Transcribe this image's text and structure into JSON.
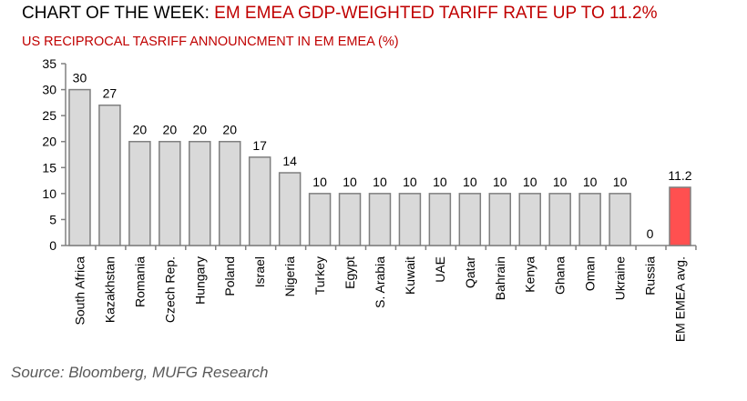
{
  "chart_data": {
    "type": "bar",
    "title_prefix": "CHART OF THE WEEK: ",
    "title": "EM EMEA GDP-WEIGHTED TARIFF RATE UP TO 11.2%",
    "subtitle": "US RECIPROCAL TASRIFF ANNOUNCMENT IN EM EMEA (%)",
    "categories": [
      "South Africa",
      "Kazakhstan",
      "Romania",
      "Czech Rep.",
      "Hungary",
      "Poland",
      "Israel",
      "Nigeria",
      "Turkey",
      "Egypt",
      "S. Arabia",
      "Kuwait",
      "UAE",
      "Qatar",
      "Bahrain",
      "Kenya",
      "Ghana",
      "Oman",
      "Ukraine",
      "Russia",
      "EM EMEA avg."
    ],
    "values": [
      30,
      27,
      20,
      20,
      20,
      20,
      17,
      14,
      10,
      10,
      10,
      10,
      10,
      10,
      10,
      10,
      10,
      10,
      10,
      0,
      11.2
    ],
    "value_labels": [
      "30",
      "27",
      "20",
      "20",
      "20",
      "20",
      "17",
      "14",
      "10",
      "10",
      "10",
      "10",
      "10",
      "10",
      "10",
      "10",
      "10",
      "10",
      "10",
      "0",
      "11.2"
    ],
    "highlight_index": 20,
    "yticks": [
      "0",
      "5",
      "10",
      "15",
      "20",
      "25",
      "30",
      "35"
    ],
    "ylim": [
      0,
      35
    ],
    "xlabel": "",
    "ylabel": "",
    "grid": false,
    "legend": "none",
    "colors": {
      "bar": "#d9d9d9",
      "highlight": "#ff5050",
      "edge": "#7f7f7f"
    },
    "source": "Source: Bloomberg, MUFG Research"
  }
}
